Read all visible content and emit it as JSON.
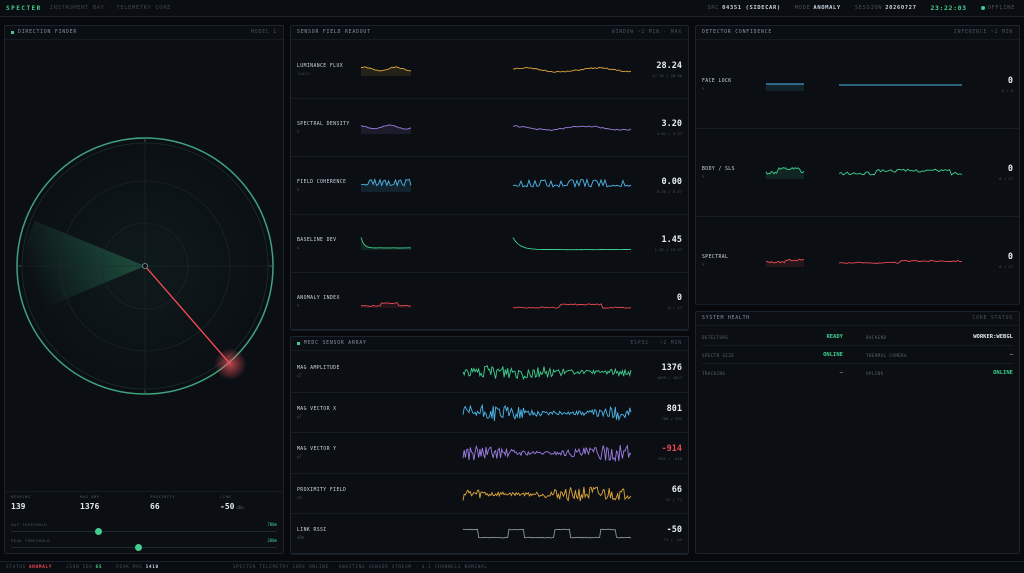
{
  "topbar": {
    "brand": "SPECTER",
    "subtitle": "INSTRUMENT BAY · TELEMETRY CORE",
    "src_label": "SRC",
    "src_value": "04351 (SIDECAR)",
    "mode_label": "MODE",
    "mode_value": "ANOMALY",
    "session_label": "SESSION",
    "session_value": "20260727",
    "clock": "23:22:03",
    "status": "OFFLINE"
  },
  "direction": {
    "title": "DIRECTION FINDER",
    "right": "MODEL 1",
    "stats": [
      {
        "label": "BEARING",
        "value": "139",
        "unit": ""
      },
      {
        "label": "MAG AMP",
        "value": "1376",
        "unit": ""
      },
      {
        "label": "PROXIMITY",
        "value": "66",
        "unit": ""
      },
      {
        "label": "LINK",
        "value": "-50",
        "unit": "dBm"
      }
    ],
    "sliders": [
      {
        "label": "GAP THRESHOLD",
        "value": "700m",
        "level": 0.33
      },
      {
        "label": "PEAK THRESHOLD",
        "value": "200m",
        "level": 0.48
      }
    ],
    "needle_bearing": 139
  },
  "readout": {
    "title": "SENSOR FIELD READOUT",
    "right": "WINDOW ~2 MIN · MAX",
    "rows": [
      {
        "label": "LUMINANCE FLUX",
        "sub": "lux/s",
        "value": "28.24",
        "range": "27.10 / 28.90",
        "color": "#e0a53a",
        "seed": 1,
        "mode": "smooth"
      },
      {
        "label": "SPECTRAL DENSITY",
        "sub": "λ",
        "value": "3.20",
        "range": "3.02 / 3.37",
        "color": "#9c7ce0",
        "seed": 2,
        "mode": "smooth"
      },
      {
        "label": "FIELD COHERENCE",
        "sub": "σ",
        "value": "0.00",
        "range": "-0.30 / 0.57",
        "color": "#4fb5e6",
        "seed": 3,
        "mode": "steps"
      },
      {
        "label": "BASELINE DEV",
        "sub": "σ",
        "value": "1.45",
        "range": "1.35 / 15.97",
        "color": "#3fcf8e",
        "seed": 4,
        "mode": "decay"
      },
      {
        "label": "ANOMALY INDEX",
        "sub": "%",
        "value": "0",
        "range": "0 / 27",
        "color": "#e8484f",
        "seed": 5,
        "mode": "flat"
      }
    ]
  },
  "emf": {
    "title": "MEDC SENSOR ARRAY",
    "right": "ESP32 · ~2 MIN",
    "rows": [
      {
        "label": "MAG AMPLITUDE",
        "sub": "µT",
        "value": "1376",
        "range": "1099 / 1617",
        "color": "#3fcf8e",
        "seed": 6,
        "mode": "noise",
        "neg": false
      },
      {
        "label": "MAG VECTOR X",
        "sub": "µT",
        "value": "801",
        "range": "700 / 934",
        "color": "#4fb5e6",
        "seed": 7,
        "mode": "noise",
        "neg": false
      },
      {
        "label": "MAG VECTOR Y",
        "sub": "µT",
        "value": "-914",
        "range": "-951 / -818",
        "color": "#9c7ce0",
        "seed": 8,
        "mode": "noise",
        "neg": true
      },
      {
        "label": "PROXIMITY FIELD",
        "sub": "cm",
        "value": "66",
        "range": "32 / 71",
        "color": "#e0a53a",
        "seed": 9,
        "mode": "noise",
        "neg": false
      },
      {
        "label": "LINK RSSI",
        "sub": "dBm",
        "value": "-50",
        "range": "-71 / -45",
        "color": "#8b959f",
        "seed": 10,
        "mode": "rssi",
        "neg": false
      }
    ]
  },
  "confidence": {
    "title": "DETECTOR CONFIDENCE",
    "right": "INFERENCE ~2 MIN",
    "rows": [
      {
        "label": "FACE LOCK",
        "sub": "%",
        "value": "0",
        "range": "0 / 0",
        "color": "#4fb5e6",
        "seed": 11,
        "mode": "flatline"
      },
      {
        "label": "BODY / SLS",
        "sub": "%",
        "value": "0",
        "range": "0 / 27",
        "color": "#3fcf8e",
        "seed": 12,
        "mode": "bumpy"
      },
      {
        "label": "SPECTRAL",
        "sub": "%",
        "value": "0",
        "range": "0 / 27",
        "color": "#e8484f",
        "seed": 13,
        "mode": "lowstep"
      }
    ]
  },
  "health": {
    "title": "SYSTEM HEALTH",
    "right": "CORE STATUS",
    "left": [
      {
        "label": "DETECTORS",
        "value": "READY",
        "style": "green"
      },
      {
        "label": "SPECTR SIZE",
        "value": "ONLINE",
        "style": "green"
      },
      {
        "label": "TRACKING",
        "value": "—",
        "style": "dim"
      }
    ],
    "right_items": [
      {
        "label": "BACKEND",
        "value": "WORKER:WEBGL",
        "style": "white"
      },
      {
        "label": "THERMAL CAMERA",
        "value": "—",
        "style": "dim"
      },
      {
        "label": "UPLINK",
        "value": "ONLINE",
        "style": "green"
      }
    ]
  },
  "bottombar": {
    "status_label": "STATUS",
    "status_value": "ANOMALY",
    "ingest_label": "JSON IDX",
    "ingest_value": "65",
    "peak_label": "PEAK MAG",
    "peak_value": "1410",
    "message": "SPECTER TELEMETRY CORE ONLINE · AWAITING SENSOR STREAM · 4.1 CHANNELS NOMINAL"
  }
}
